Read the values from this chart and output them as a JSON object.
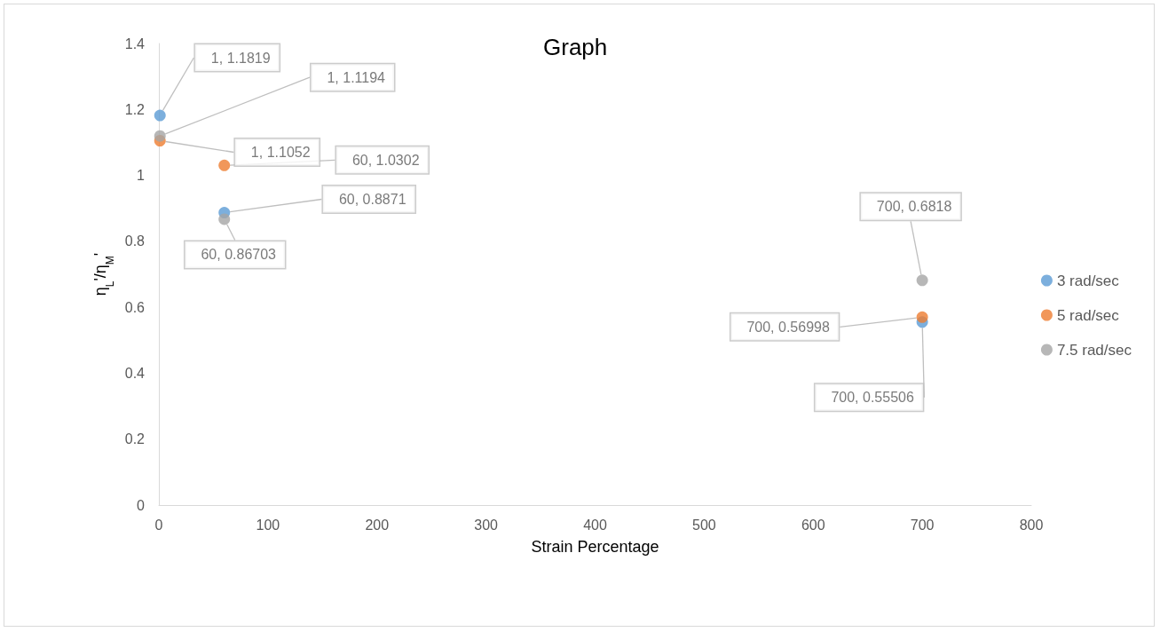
{
  "chart_data": {
    "type": "scatter",
    "title": "Graph",
    "xlabel": "Strain Percentage",
    "ylabel": "η$_{L}$'/η$_{M}$'",
    "xlim": [
      0,
      800
    ],
    "xticks": [
      0,
      100,
      200,
      300,
      400,
      500,
      600,
      700,
      800
    ],
    "ylim": [
      0,
      1.4
    ],
    "yticks": [
      0,
      0.2,
      0.4,
      0.6,
      0.8,
      1,
      1.2,
      1.4
    ],
    "grid": false,
    "legend": "right",
    "marker": "circle",
    "series": [
      {
        "name": "3 rad/sec",
        "color": "#5b9bd5",
        "x": [
          1,
          60,
          700
        ],
        "values": [
          1.1819,
          0.8871,
          0.55506
        ],
        "value_labels": [
          "1, 1.1819",
          "60, 0.8871",
          "700, 0.55506"
        ]
      },
      {
        "name": "5 rad/sec",
        "color": "#ed7d31",
        "x": [
          1,
          60,
          700
        ],
        "values": [
          1.1052,
          1.0302,
          0.56998
        ],
        "value_labels": [
          "1, 1.1052",
          "60, 1.0302",
          "700, 0.56998"
        ]
      },
      {
        "name": "7.5 rad/sec",
        "color": "#a5a5a5",
        "x": [
          1,
          60,
          700
        ],
        "values": [
          1.1194,
          0.86703,
          0.6818
        ],
        "value_labels": [
          "1, 1.1194",
          "60, 0.86703",
          "700, 0.6818"
        ]
      }
    ]
  }
}
